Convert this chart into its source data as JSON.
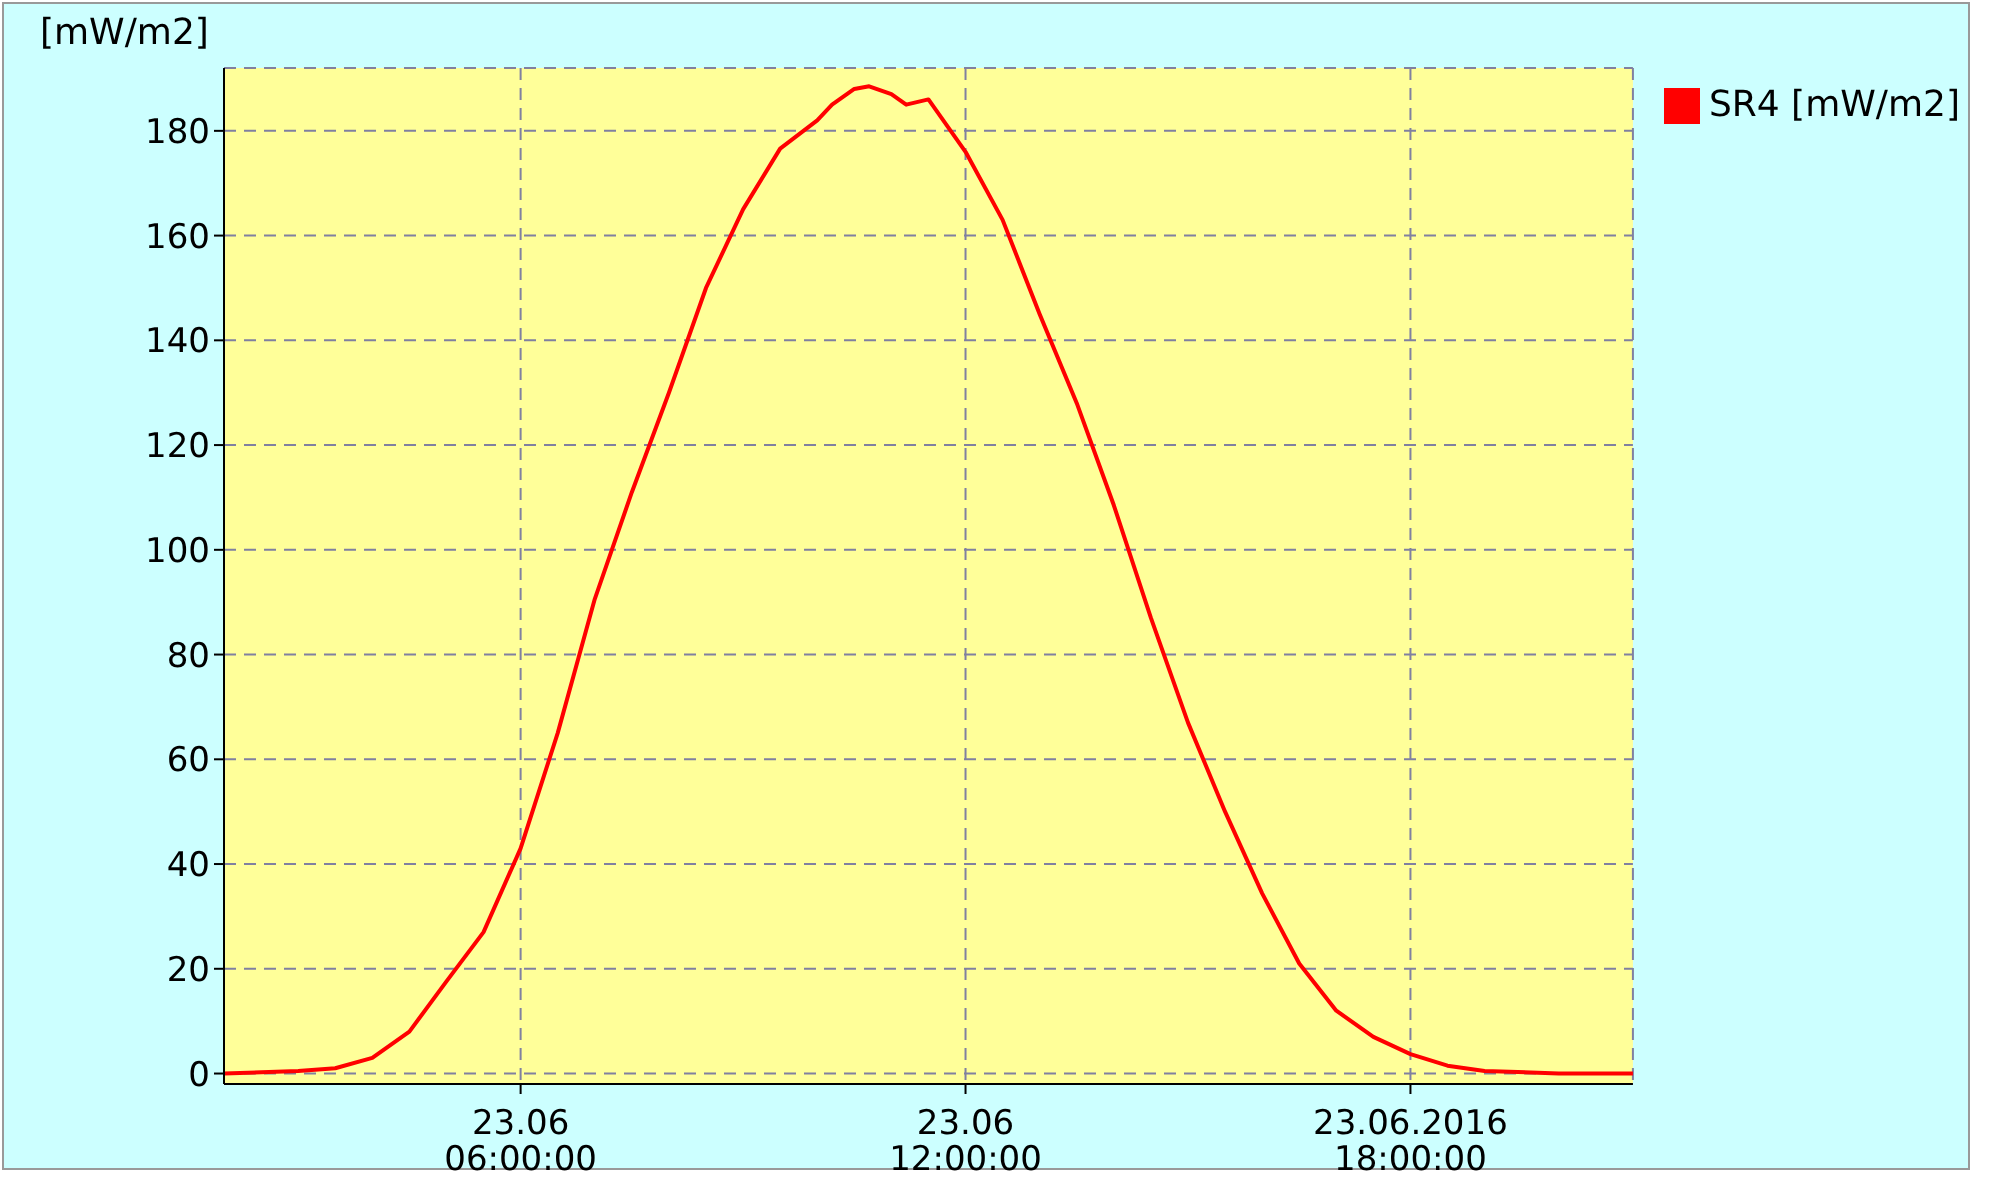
{
  "chart_data": {
    "type": "line",
    "ylabel": "[mW/m2]",
    "x": [
      "2016-06-23T02:00",
      "2016-06-23T03:00",
      "2016-06-23T03:30",
      "2016-06-23T04:00",
      "2016-06-23T04:30",
      "2016-06-23T05:00",
      "2016-06-23T05:30",
      "2016-06-23T06:00",
      "2016-06-23T06:30",
      "2016-06-23T07:00",
      "2016-06-23T07:30",
      "2016-06-23T08:00",
      "2016-06-23T08:30",
      "2016-06-23T09:00",
      "2016-06-23T09:30",
      "2016-06-23T10:00",
      "2016-06-23T10:12",
      "2016-06-23T10:30",
      "2016-06-23T10:42",
      "2016-06-23T11:00",
      "2016-06-23T11:12",
      "2016-06-23T11:30",
      "2016-06-23T12:00",
      "2016-06-23T12:30",
      "2016-06-23T13:00",
      "2016-06-23T13:30",
      "2016-06-23T14:00",
      "2016-06-23T14:30",
      "2016-06-23T15:00",
      "2016-06-23T15:30",
      "2016-06-23T16:00",
      "2016-06-23T16:30",
      "2016-06-23T17:00",
      "2016-06-23T17:30",
      "2016-06-23T18:00",
      "2016-06-23T18:30",
      "2016-06-23T19:00",
      "2016-06-23T20:00",
      "2016-06-23T21:00"
    ],
    "series": [
      {
        "name": "SR4 [mW/m2]",
        "color": "#ff0000",
        "values": [
          0,
          0.5,
          1,
          3,
          8,
          17.6,
          27,
          43,
          65,
          90.6,
          111,
          130,
          150,
          165,
          176.6,
          182,
          185,
          188,
          188.5,
          187,
          185,
          186,
          176,
          163,
          145,
          128,
          108.5,
          87,
          67,
          50,
          34.4,
          21,
          12,
          7,
          3.7,
          1.5,
          0.5,
          0,
          0
        ]
      }
    ],
    "xlim": [
      "2016-06-23T02:00",
      "2016-06-23T21:00"
    ],
    "xticks": [
      {
        "value": "2016-06-23T06:00",
        "label": "23.06\n06:00:00"
      },
      {
        "value": "2016-06-23T12:00",
        "label": "23.06\n12:00:00"
      },
      {
        "value": "2016-06-23T18:00",
        "label": "23.06.2016\n18:00:00"
      }
    ],
    "ylim": [
      -2,
      192
    ],
    "yticks": [
      0,
      20,
      40,
      60,
      80,
      100,
      120,
      140,
      160,
      180
    ],
    "grid": true,
    "legend": "top right",
    "line_style": "solid",
    "marker": "none"
  }
}
